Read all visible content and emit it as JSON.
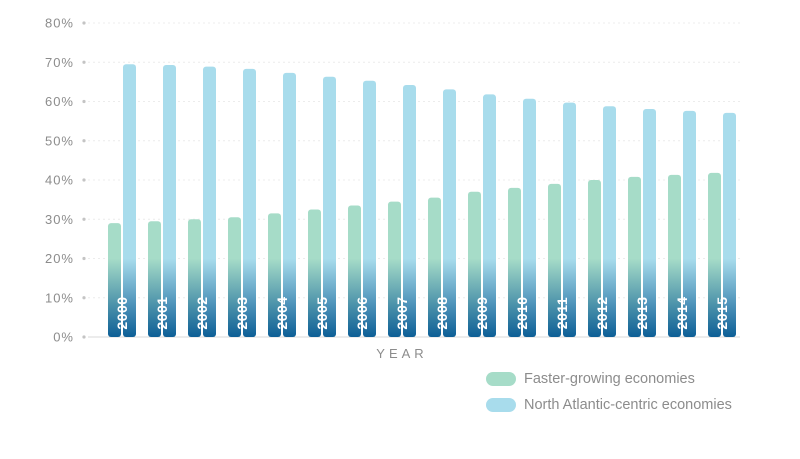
{
  "chart_data": {
    "type": "bar",
    "categories": [
      "2000",
      "2001",
      "2002",
      "2003",
      "2004",
      "2005",
      "2006",
      "2007",
      "2008",
      "2009",
      "2010",
      "2011",
      "2012",
      "2013",
      "2014",
      "2015"
    ],
    "series": [
      {
        "name": "Faster-growing economies",
        "color": "#a6dcc8",
        "values": [
          29,
          29.5,
          30,
          30.5,
          31.5,
          32.5,
          33.5,
          34.5,
          35.5,
          37,
          38,
          39,
          40,
          40.8,
          41.3,
          41.8
        ]
      },
      {
        "name": "North Atlantic-centric economies",
        "color": "#a8dcec",
        "values": [
          69.5,
          69.3,
          68.9,
          68.3,
          67.3,
          66.3,
          65.3,
          64.2,
          63.1,
          61.8,
          60.7,
          59.7,
          58.8,
          58.1,
          57.6,
          57.1
        ]
      }
    ],
    "y_ticks": [
      "0%",
      "10%",
      "20%",
      "30%",
      "40%",
      "50%",
      "60%",
      "70%",
      "80%"
    ],
    "ylim": [
      0,
      80
    ],
    "xlabel": "YEAR",
    "ylabel": "",
    "title": "",
    "grid": true,
    "legend_position": "bottom-right",
    "label_color": "#0d5f96"
  }
}
